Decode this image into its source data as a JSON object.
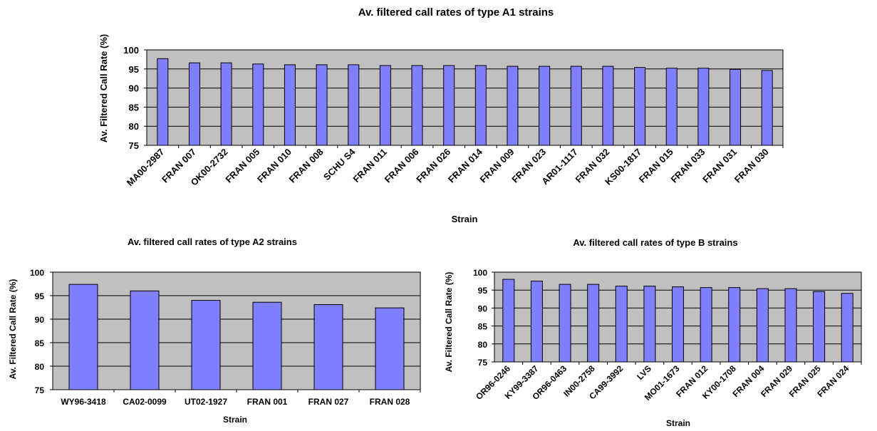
{
  "chart_data": [
    {
      "type": "bar",
      "title": "Av. filtered call rates of type A1 strains",
      "xlabel": "Strain",
      "ylabel": "Av. Filtered Call Rate (%)",
      "ylim": [
        75,
        100
      ],
      "yticks": [
        75,
        80,
        85,
        90,
        95,
        100
      ],
      "grid": true,
      "categories": [
        "MA00-2987",
        "FRAN 007",
        "OK00-2732",
        "FRAN 005",
        "FRAN 010",
        "FRAN 008",
        "SCHU S4",
        "FRAN 011",
        "FRAN 006",
        "FRAN 026",
        "FRAN 014",
        "FRAN 009",
        "FRAN 023",
        "AR01-1117",
        "FRAN 032",
        "KS00-1817",
        "FRAN 015",
        "FRAN 033",
        "FRAN 031",
        "FRAN 030"
      ],
      "values": [
        97.7,
        96.6,
        96.6,
        96.3,
        96.1,
        96.1,
        96.1,
        95.9,
        95.9,
        95.9,
        95.9,
        95.7,
        95.7,
        95.7,
        95.7,
        95.4,
        95.2,
        95.2,
        94.9,
        94.6
      ]
    },
    {
      "type": "bar",
      "title": "Av. filtered call rates of type A2 strains",
      "xlabel": "Strain",
      "ylabel": "Av. Filtered Call Rate (%)",
      "ylim": [
        75,
        100
      ],
      "yticks": [
        75,
        80,
        85,
        90,
        95,
        100
      ],
      "grid": true,
      "categories": [
        "WY96-3418",
        "CA02-0099",
        "UT02-1927",
        "FRAN 001",
        "FRAN 027",
        "FRAN 028"
      ],
      "values": [
        97.4,
        96.0,
        94.0,
        93.6,
        93.1,
        92.4
      ]
    },
    {
      "type": "bar",
      "title": "Av. filtered call rates of type B strains",
      "xlabel": "Strain",
      "ylabel": "Av. Filtered Call Rate (%)",
      "ylim": [
        75,
        100
      ],
      "yticks": [
        75,
        80,
        85,
        90,
        95,
        100
      ],
      "grid": true,
      "categories": [
        "OR96-0246",
        "KY99-3387",
        "OR96-0463",
        "IN00-2758",
        "CA99-3992",
        "LVS",
        "MO01-1673",
        "FRAN 012",
        "KY00-1708",
        "FRAN 004",
        "FRAN 029",
        "FRAN 025",
        "FRAN 024"
      ],
      "values": [
        98.0,
        97.5,
        96.6,
        96.6,
        96.1,
        96.1,
        95.9,
        95.7,
        95.7,
        95.4,
        95.4,
        94.6,
        94.1
      ]
    }
  ]
}
